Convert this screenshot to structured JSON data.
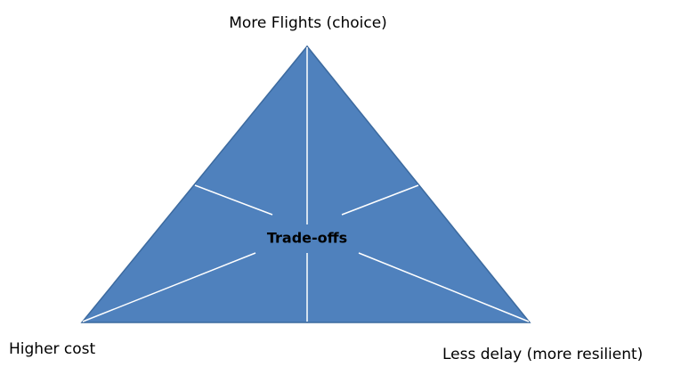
{
  "diagram": {
    "top_label": "More Flights  (choice)",
    "center_label": "Trade-offs",
    "bottom_left_label": "Higher cost",
    "bottom_right_label": "Less delay (more resilient)"
  }
}
